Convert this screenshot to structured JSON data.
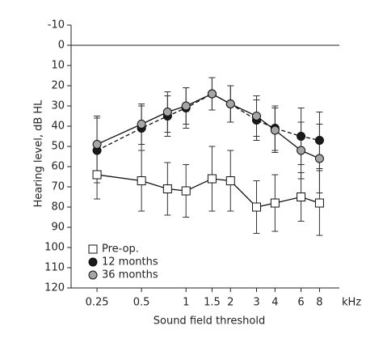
{
  "chart_data": {
    "type": "line",
    "x_label": "Sound field threshold",
    "x_unit": "kHz",
    "y_label": "Hearing level, dB HL",
    "x": [
      0.25,
      0.5,
      0.75,
      1,
      1.5,
      2,
      3,
      4,
      6,
      8
    ],
    "series": [
      {
        "name": "Pre-op.",
        "color": "#ffffff",
        "marker": "square",
        "line": "solid",
        "values": [
          64,
          67,
          71,
          72,
          66,
          67,
          80,
          78,
          75,
          78
        ],
        "errors": [
          12,
          15,
          13,
          13,
          16,
          15,
          13,
          14,
          12,
          16
        ]
      },
      {
        "name": "12 months",
        "color": "#1a1a1a",
        "marker": "circle",
        "line": "dashed",
        "values": [
          52,
          41,
          35,
          31,
          24,
          29,
          37,
          41,
          45,
          47
        ],
        "errors": [
          16,
          11,
          10,
          10,
          8,
          9,
          10,
          11,
          14,
          14
        ]
      },
      {
        "name": "36 months",
        "color": "#a6a6a6",
        "marker": "circle",
        "line": "solid",
        "values": [
          49,
          39,
          33,
          30,
          24,
          29,
          35,
          42,
          52,
          56
        ],
        "errors": [
          14,
          10,
          10,
          9,
          8,
          9,
          10,
          11,
          14,
          17
        ]
      }
    ],
    "xlim": [
      0.167,
      10.9
    ],
    "x_log": true,
    "xticks": [
      0.25,
      0.5,
      1,
      1.5,
      2,
      3,
      4,
      6,
      8
    ],
    "ylim": [
      -10,
      120
    ],
    "y_inverted": true,
    "yticks": [
      -10,
      0,
      10,
      20,
      30,
      40,
      50,
      60,
      70,
      80,
      90,
      100,
      110,
      120
    ],
    "hline": 0,
    "legend": "lower left"
  }
}
